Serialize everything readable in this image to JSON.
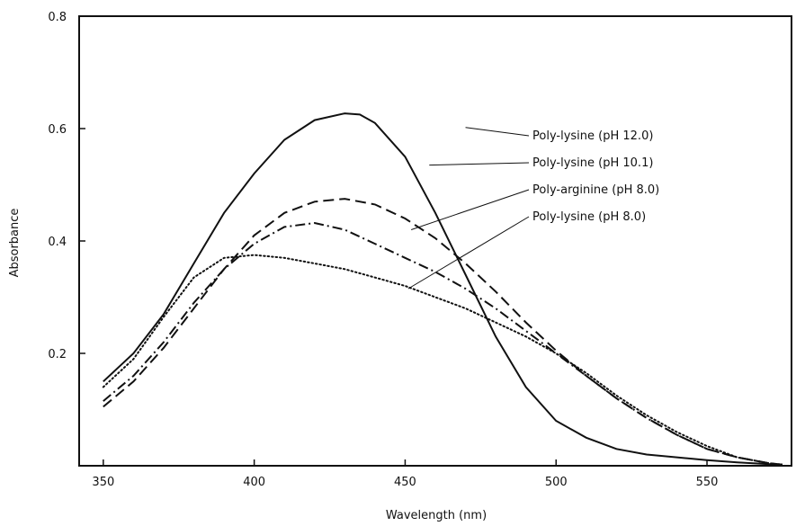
{
  "chart_data": {
    "type": "line",
    "title": "",
    "xlabel": "Wavelength (nm)",
    "ylabel": "Absorbance",
    "xlim": [
      342,
      578
    ],
    "ylim": [
      0,
      0.8
    ],
    "x_ticks": [
      350,
      400,
      450,
      500,
      550
    ],
    "y_ticks": [
      0.2,
      0.4,
      0.6,
      0.8
    ],
    "grid": false,
    "series": [
      {
        "name": "Poly-lysine (pH 12.0)",
        "line_style": "solid",
        "label_anchor": [
          470,
          0.602
        ],
        "x": [
          350,
          360,
          370,
          380,
          390,
          400,
          410,
          420,
          430,
          435,
          440,
          450,
          460,
          470,
          480,
          490,
          500,
          510,
          520,
          530,
          540,
          550,
          560,
          570,
          575
        ],
        "y": [
          0.15,
          0.2,
          0.27,
          0.36,
          0.45,
          0.52,
          0.58,
          0.615,
          0.627,
          0.625,
          0.61,
          0.55,
          0.45,
          0.34,
          0.23,
          0.14,
          0.08,
          0.05,
          0.03,
          0.02,
          0.015,
          0.01,
          0.006,
          0.003,
          0.002
        ]
      },
      {
        "name": "Poly-lysine (pH 10.1)",
        "line_style": "dashed",
        "label_anchor": [
          458,
          0.535
        ],
        "x": [
          350,
          360,
          370,
          380,
          390,
          400,
          410,
          420,
          430,
          440,
          450,
          460,
          470,
          480,
          490,
          500,
          510,
          520,
          530,
          540,
          550,
          560,
          570,
          575
        ],
        "y": [
          0.105,
          0.15,
          0.21,
          0.28,
          0.35,
          0.41,
          0.45,
          0.47,
          0.475,
          0.465,
          0.44,
          0.405,
          0.36,
          0.31,
          0.255,
          0.205,
          0.16,
          0.12,
          0.085,
          0.055,
          0.03,
          0.015,
          0.005,
          0.002
        ]
      },
      {
        "name": "Poly-arginine (pH 8.0)",
        "line_style": "dashdot",
        "label_anchor": [
          452,
          0.42
        ],
        "x": [
          350,
          360,
          370,
          380,
          390,
          400,
          410,
          420,
          430,
          440,
          450,
          460,
          470,
          480,
          490,
          500,
          510,
          520,
          530,
          540,
          550,
          560,
          570,
          575
        ],
        "y": [
          0.115,
          0.16,
          0.22,
          0.29,
          0.35,
          0.395,
          0.425,
          0.432,
          0.42,
          0.395,
          0.37,
          0.345,
          0.315,
          0.28,
          0.24,
          0.2,
          0.16,
          0.12,
          0.085,
          0.055,
          0.03,
          0.015,
          0.005,
          0.002
        ]
      },
      {
        "name": "Poly-lysine (pH 8.0)",
        "line_style": "dotted",
        "label_anchor": [
          451,
          0.315
        ],
        "x": [
          350,
          360,
          370,
          380,
          390,
          400,
          410,
          420,
          430,
          440,
          450,
          460,
          470,
          480,
          490,
          500,
          510,
          520,
          530,
          540,
          550,
          560,
          570,
          575
        ],
        "y": [
          0.14,
          0.19,
          0.265,
          0.335,
          0.37,
          0.375,
          0.37,
          0.36,
          0.35,
          0.335,
          0.32,
          0.3,
          0.28,
          0.255,
          0.23,
          0.2,
          0.165,
          0.125,
          0.09,
          0.06,
          0.035,
          0.015,
          0.005,
          0.002
        ]
      }
    ],
    "legend": {
      "placement": "top-right",
      "style": "leader-line labels"
    }
  }
}
